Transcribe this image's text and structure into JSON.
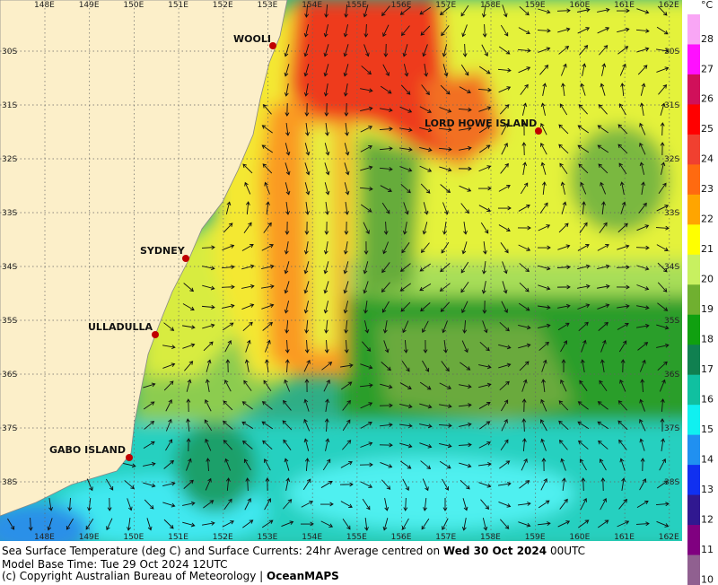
{
  "map": {
    "lon_labels": [
      "148E",
      "149E",
      "150E",
      "151E",
      "152E",
      "153E",
      "154E",
      "155E",
      "156E",
      "157E",
      "158E",
      "159E",
      "160E",
      "161E",
      "162E"
    ],
    "lat_labels": [
      "30S",
      "31S",
      "32S",
      "33S",
      "34S",
      "35S",
      "36S",
      "37S",
      "38S"
    ],
    "places": [
      {
        "label": "WOOLI"
      },
      {
        "label": "LORD HOWE ISLAND"
      },
      {
        "label": "SYDNEY"
      },
      {
        "label": "ULLADULLA"
      },
      {
        "label": "GABO ISLAND"
      }
    ]
  },
  "colorbar": {
    "unit": "°C",
    "ticks": [
      28,
      27,
      26,
      25,
      24,
      23,
      22,
      21,
      20,
      19,
      18,
      17,
      16,
      15,
      14,
      13,
      12,
      11,
      10
    ]
  },
  "caption": {
    "line1": "Sea Surface Temperature (deg C) and Surface Currents: 24hr Average centred on",
    "date": "Wed 30 Oct 2024",
    "time": "00UTC",
    "line2": "Model Base Time: Tue 29 Oct 2024 12UTC",
    "line3": "(c) Copyright Australian Bureau of Meteorology |",
    "brand": "OceanMAPS"
  }
}
